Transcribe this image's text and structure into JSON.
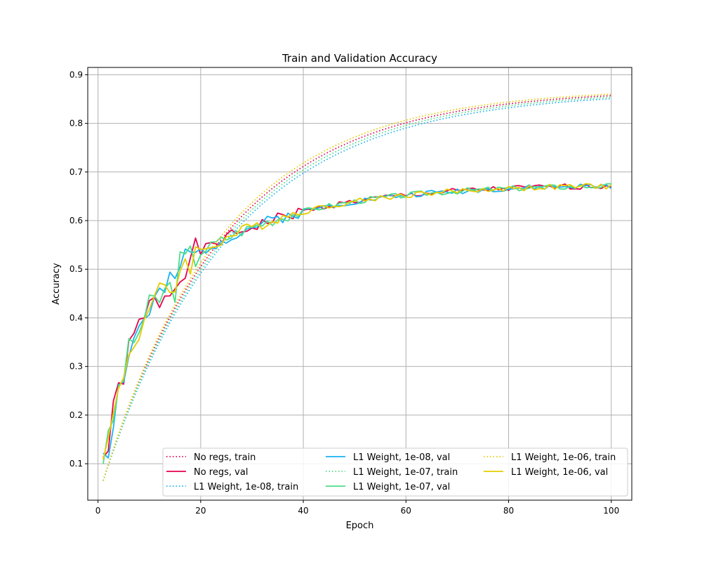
{
  "chart_data": {
    "type": "line",
    "title": "Train and Validation Accuracy",
    "xlabel": "Epoch",
    "ylabel": "Accuracy",
    "xlim": [
      -2,
      104
    ],
    "ylim": [
      0.025,
      0.915
    ],
    "xticks": [
      0,
      20,
      40,
      60,
      80,
      100
    ],
    "yticks": [
      0.1,
      0.2,
      0.3,
      0.4,
      0.5,
      0.6,
      0.7,
      0.8,
      0.9
    ],
    "grid": true,
    "legend_position": "lower-center",
    "series": [
      {
        "name": "No regs, train",
        "color": "#e6004c",
        "style": "dotted",
        "kind": "train",
        "params": {
          "max": 0.87,
          "tau": 24,
          "start": 0.065
        }
      },
      {
        "name": "No regs, val",
        "color": "#e6004c",
        "style": "solid",
        "kind": "val",
        "params": {
          "start": 0.11,
          "seed": 1
        }
      },
      {
        "name": "L1 Weight, 1e-08, train",
        "color": "#1ab2f0",
        "style": "dotted",
        "kind": "train",
        "params": {
          "max": 0.866,
          "tau": 25,
          "start": 0.065
        }
      },
      {
        "name": "L1 Weight, 1e-08, val",
        "color": "#1ab2f0",
        "style": "solid",
        "kind": "val",
        "params": {
          "start": 0.13,
          "seed": 2
        }
      },
      {
        "name": "L1 Weight, 1e-07, train",
        "color": "#4ddd88",
        "style": "dotted",
        "kind": "train",
        "params": {
          "max": 0.868,
          "tau": 24.5,
          "start": 0.065
        }
      },
      {
        "name": "L1 Weight, 1e-07, val",
        "color": "#4ddd88",
        "style": "solid",
        "kind": "val",
        "params": {
          "start": 0.12,
          "seed": 3
        }
      },
      {
        "name": "L1 Weight, 1e-06, train",
        "color": "#e6cc00",
        "style": "dotted",
        "kind": "train",
        "params": {
          "max": 0.872,
          "tau": 23.5,
          "start": 0.065
        }
      },
      {
        "name": "L1 Weight, 1e-06, val",
        "color": "#e6cc00",
        "style": "solid",
        "kind": "val",
        "params": {
          "start": 0.14,
          "seed": 4
        }
      }
    ]
  }
}
